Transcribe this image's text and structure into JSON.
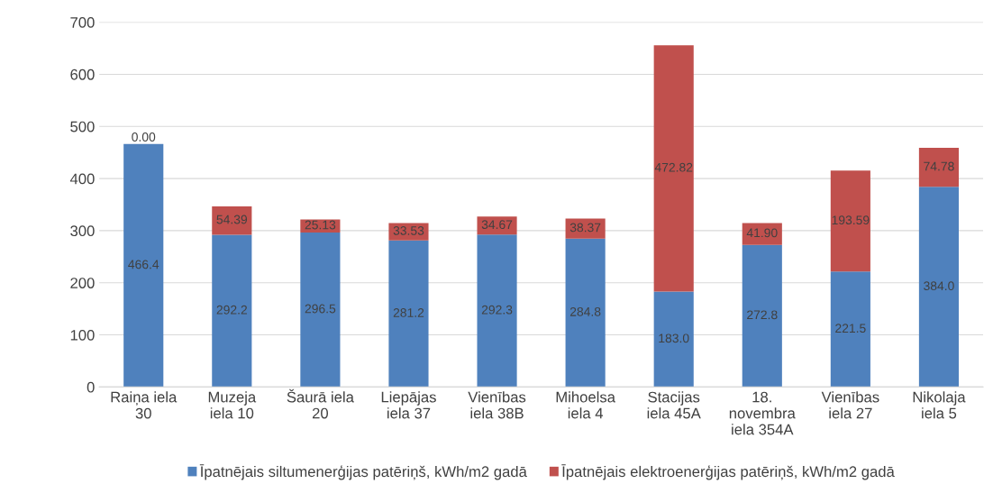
{
  "chart_data": {
    "type": "bar",
    "stacked": true,
    "categories": [
      "Raiņa iela 30",
      "Muzeja iela 10",
      "Šaurā iela 20",
      "Liepājas iela 37",
      "Vienības iela 38B",
      "Mihoelsa iela 4",
      "Stacijas iela 45A",
      "18. novembra iela 354A",
      "Vienības iela 27",
      "Nikolaja iela 5"
    ],
    "series": [
      {
        "name": "Īpatnējais siltumenerģijas patēriņš, kWh/m2 gadā",
        "color": "#4f81bd",
        "values": [
          466.4,
          292.2,
          296.5,
          281.2,
          292.3,
          284.8,
          183.0,
          272.8,
          221.5,
          384.0
        ],
        "value_labels": [
          "466.4",
          "292.2",
          "296.5",
          "281.2",
          "292.3",
          "284.8",
          "183.0",
          "272.8",
          "221.5",
          "384.0"
        ]
      },
      {
        "name": "Īpatnējais elektroenerģijas patēriņš, kWh/m2 gadā",
        "color": "#c0504d",
        "values": [
          0.0,
          54.39,
          25.13,
          33.53,
          34.67,
          38.37,
          472.82,
          41.9,
          193.59,
          74.78
        ],
        "value_labels": [
          "0.00",
          "54.39",
          "25.13",
          "33.53",
          "34.67",
          "38.37",
          "472.82",
          "41.90",
          "193.59",
          "74.78"
        ]
      }
    ],
    "ylim": [
      0,
      700
    ],
    "yticks": [
      0,
      100,
      200,
      300,
      400,
      500,
      600,
      700
    ],
    "grid": "y",
    "legend": "bottom"
  }
}
